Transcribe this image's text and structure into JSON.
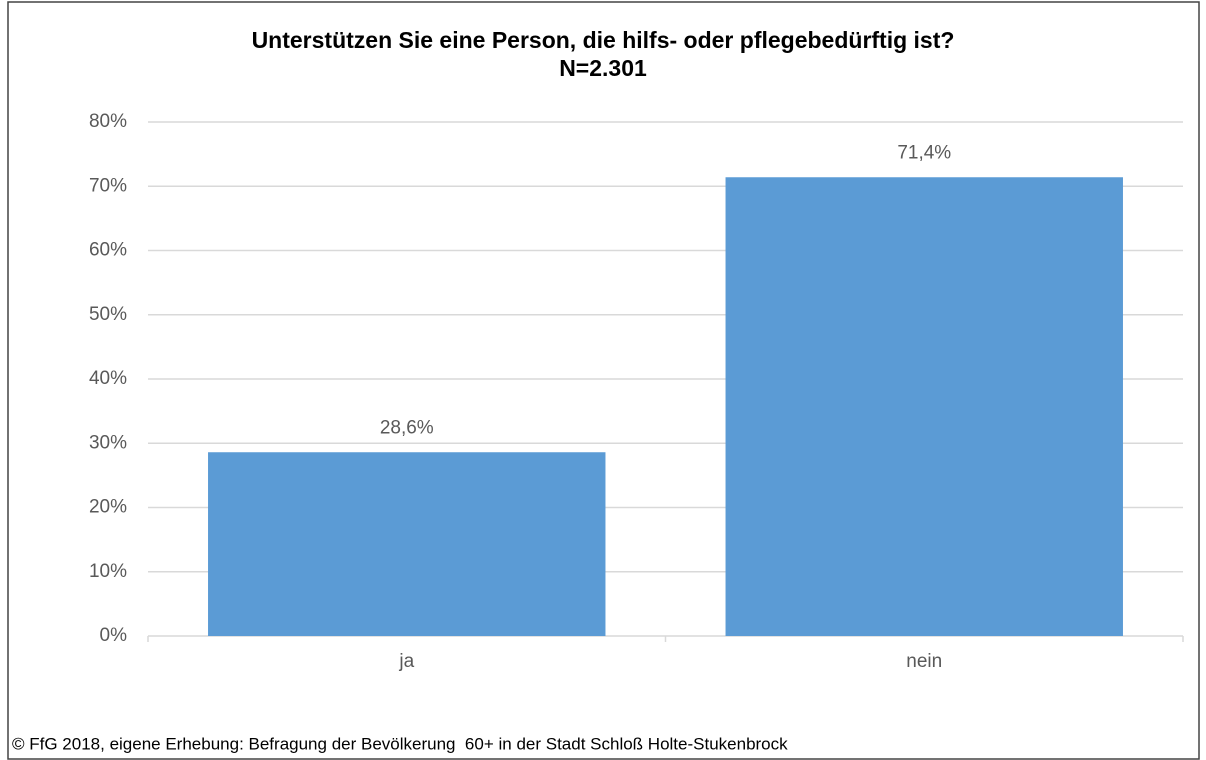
{
  "chart_data": {
    "type": "bar",
    "title": "Unterstützen Sie eine Person, die hilfs- oder pflegebedürftig ist?",
    "subtitle": "N=2.301",
    "categories": [
      "ja",
      "nein"
    ],
    "values": [
      28.6,
      71.4
    ],
    "value_labels": [
      "28,6%",
      "71,4%"
    ],
    "color": "#5b9bd5",
    "ylim": [
      0,
      80
    ],
    "yticks": [
      {
        "value": 0,
        "label": "0%"
      },
      {
        "value": 10,
        "label": "10%"
      },
      {
        "value": 20,
        "label": "20%"
      },
      {
        "value": 30,
        "label": "30%"
      },
      {
        "value": 40,
        "label": "40%"
      },
      {
        "value": 50,
        "label": "50%"
      },
      {
        "value": 60,
        "label": "60%"
      },
      {
        "value": 70,
        "label": "70%"
      },
      {
        "value": 80,
        "label": "80%"
      }
    ],
    "grid": true,
    "source": "© FfG 2018, eigene Erhebung: Befragung der Bevölkerung  60+ in der Stadt Schloß Holte-Stukenbrock"
  }
}
